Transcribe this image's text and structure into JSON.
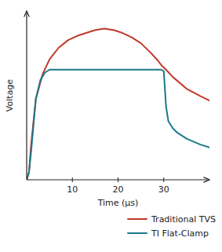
{
  "chart_data": {
    "type": "line",
    "xlabel": "Time (μs)",
    "ylabel": "Voltage",
    "xlim": [
      0,
      40
    ],
    "ylim": [
      0,
      1.15
    ],
    "xticks": [
      10,
      20,
      30
    ],
    "yticks": [],
    "tick_labels": "x",
    "grid": false,
    "legend": "lower right",
    "series": [
      {
        "name": "Traditional TVS",
        "color": "#c0392b",
        "x": [
          0,
          0.5,
          1.0,
          2.0,
          3.5,
          5.0,
          7.0,
          9.0,
          11.0,
          13.0,
          15.0,
          17.0,
          19.0,
          21.0,
          23.0,
          25.0,
          27.0,
          28.5,
          29.5,
          30.5,
          32.0,
          35.0,
          38.0,
          40.0
        ],
        "values": [
          0,
          0.05,
          0.25,
          0.55,
          0.72,
          0.82,
          0.9,
          0.95,
          0.98,
          1.0,
          1.02,
          1.03,
          1.02,
          1.0,
          0.97,
          0.93,
          0.87,
          0.82,
          0.78,
          0.75,
          0.7,
          0.62,
          0.57,
          0.54
        ]
      },
      {
        "name": "TI Flat-Clamp",
        "color": "#1a7a8a",
        "x": [
          0,
          0.5,
          1.0,
          2.0,
          3.0,
          4.0,
          5.0,
          29.5,
          30.0,
          30.5,
          31.0,
          32.0,
          33.0,
          35.0,
          38.0,
          40.0
        ],
        "values": [
          0,
          0.05,
          0.2,
          0.55,
          0.68,
          0.73,
          0.75,
          0.75,
          0.74,
          0.5,
          0.4,
          0.35,
          0.32,
          0.28,
          0.24,
          0.22
        ]
      }
    ]
  }
}
